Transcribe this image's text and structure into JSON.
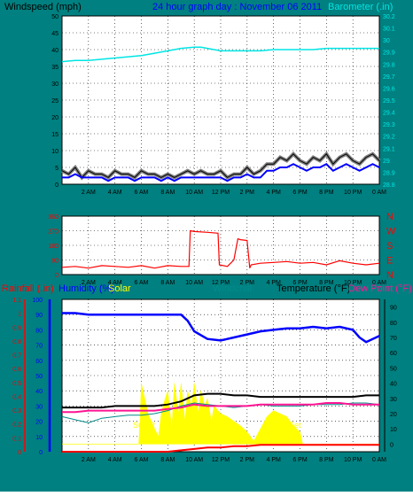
{
  "colors": {
    "background": "#008080",
    "plot_bg": "#ffffff",
    "grid": "#000000",
    "windspeed": "#000000",
    "windspeed_avg": "#0000ff",
    "gust_shadow": "#808080",
    "barometer": "#00e5e5",
    "direction": "#ff0000",
    "humidity": "#0000ff",
    "solar": "#ffff00",
    "windchill": "#008b8b",
    "temperature": "#000000",
    "dew_point": "#ff1493",
    "rainfall": "#ff0000",
    "label_blue": "#0000ff",
    "label_cyan": "#00e5e5",
    "label_red": "#ff0000",
    "label_pink": "#ff1493",
    "label_yellow": "#ffff00",
    "label_teal": "#008b8b"
  },
  "header": {
    "windspeed_label": "Windspeed (mph)",
    "graph_title": "24 hour graph day : November 06 2011",
    "barometer_label": "Barometer (.in)"
  },
  "lower_labels": {
    "rainfall": "Rainfall (.in)",
    "humidity": "Humidity (%)",
    "solar": "Solar",
    "windchill": "Windchill",
    "temperature": "Temperature (°F)",
    "dew_point": "Dew Point (°F)",
    "sun_rise": "Sun R",
    "sun_set": "Set"
  },
  "chart_data": [
    {
      "type": "line",
      "x_ticks": [
        "2 AM",
        "4 AM",
        "6 AM",
        "8 AM",
        "10 AM",
        "12 PM",
        "2 PM",
        "4 PM",
        "6 PM",
        "8 PM",
        "10 PM",
        "0 AM"
      ],
      "x_range": [
        0,
        24
      ],
      "y_left_ticks": [
        "0",
        "5",
        "10",
        "15",
        "20",
        "25",
        "30",
        "35",
        "40",
        "45",
        "50"
      ],
      "y_left_range": [
        0,
        50
      ],
      "y_right_ticks": [
        "28.8",
        "28.9",
        "29",
        "29.1",
        "29.2",
        "29.3",
        "29.4",
        "29.5",
        "29.6",
        "29.7",
        "29.8",
        "29.9",
        "30",
        "30.1",
        "30.2"
      ],
      "y_right_range": [
        28.8,
        30.2
      ],
      "grid": true,
      "series": [
        {
          "name": "Windspeed (mph)",
          "axis": "left",
          "x": [
            0,
            0.5,
            1,
            1.5,
            2,
            2.5,
            3,
            3.5,
            4,
            4.5,
            5,
            5.5,
            6,
            6.5,
            7,
            7.5,
            8,
            8.5,
            9,
            9.5,
            10,
            10.5,
            11,
            11.5,
            12,
            12.5,
            13,
            13.5,
            14,
            14.5,
            15,
            15.5,
            16,
            16.5,
            17,
            17.5,
            18,
            18.5,
            19,
            19.5,
            20,
            20.5,
            21,
            21.5,
            22,
            22.5,
            23,
            23.5,
            24
          ],
          "y": [
            4,
            3,
            5,
            2,
            4,
            3,
            3,
            2,
            4,
            3,
            3,
            2,
            4,
            3,
            3,
            2,
            3,
            2,
            3,
            4,
            3,
            4,
            3,
            3,
            4,
            2,
            3,
            3,
            5,
            3,
            4,
            6,
            6,
            8,
            7,
            9,
            7,
            6,
            8,
            7,
            9,
            6,
            8,
            9,
            7,
            6,
            8,
            9,
            7
          ]
        },
        {
          "name": "Average windspeed",
          "axis": "left",
          "x": [
            0,
            0.5,
            1,
            1.5,
            2,
            2.5,
            3,
            3.5,
            4,
            4.5,
            5,
            5.5,
            6,
            6.5,
            7,
            7.5,
            8,
            8.5,
            9,
            9.5,
            10,
            10.5,
            11,
            11.5,
            12,
            12.5,
            13,
            13.5,
            14,
            14.5,
            15,
            15.5,
            16,
            16.5,
            17,
            17.5,
            18,
            18.5,
            19,
            19.5,
            20,
            20.5,
            21,
            21.5,
            22,
            22.5,
            23,
            23.5,
            24
          ],
          "y": [
            2,
            2,
            3,
            2,
            2,
            2,
            2,
            1,
            2,
            2,
            2,
            1,
            2,
            2,
            2,
            1,
            2,
            1,
            2,
            2,
            2,
            2,
            2,
            2,
            2,
            1,
            2,
            2,
            3,
            2,
            2,
            4,
            4,
            5,
            5,
            6,
            5,
            4,
            5,
            5,
            6,
            4,
            5,
            6,
            5,
            4,
            5,
            6,
            5
          ]
        },
        {
          "name": "Barometer (.in)",
          "axis": "right",
          "x": [
            0,
            1,
            2,
            3,
            4,
            5,
            6,
            7,
            8,
            9,
            10,
            10.5,
            11,
            12,
            13,
            14,
            15,
            16,
            17,
            18,
            19,
            20,
            21,
            22,
            23,
            24
          ],
          "y": [
            29.82,
            29.83,
            29.83,
            29.84,
            29.85,
            29.86,
            29.87,
            29.89,
            29.91,
            29.93,
            29.94,
            29.94,
            29.93,
            29.91,
            29.91,
            29.91,
            29.91,
            29.92,
            29.92,
            29.92,
            29.92,
            29.93,
            29.93,
            29.93,
            29.93,
            29.93
          ]
        }
      ]
    },
    {
      "type": "line",
      "x_ticks": [
        "2 AM",
        "4 AM",
        "6 AM",
        "8 AM",
        "10 AM",
        "12 PM",
        "2 PM",
        "4 PM",
        "6 PM",
        "8 PM",
        "10 PM",
        "0 AM"
      ],
      "x_range": [
        0,
        24
      ],
      "y_left_ticks": [
        "0",
        "90",
        "180",
        "270",
        "360"
      ],
      "y_left_range": [
        0,
        360
      ],
      "y_right_ticks": [
        "N",
        "E",
        "S",
        "W",
        "N"
      ],
      "grid": true,
      "series": [
        {
          "name": "Wind direction",
          "axis": "left",
          "x": [
            0,
            1,
            2,
            3,
            4,
            5,
            6,
            7,
            8,
            9,
            9.6,
            9.7,
            10,
            11,
            11.8,
            11.9,
            12.5,
            13,
            13.3,
            13.5,
            14,
            14.2,
            14.3,
            15,
            16,
            17,
            18,
            19,
            20,
            21,
            22,
            23,
            24
          ],
          "y": [
            45,
            50,
            40,
            55,
            50,
            45,
            55,
            40,
            55,
            50,
            50,
            270,
            265,
            260,
            255,
            60,
            50,
            90,
            220,
            215,
            210,
            40,
            60,
            70,
            75,
            80,
            70,
            75,
            60,
            85,
            70,
            60,
            70
          ]
        }
      ]
    },
    {
      "type": "line",
      "x_ticks": [
        "2 AM",
        "4 AM",
        "6 AM",
        "8 AM",
        "10 AM",
        "12 PM",
        "2 PM",
        "4 PM",
        "6 PM",
        "8 PM",
        "10 PM",
        "0 AM"
      ],
      "x_range": [
        0,
        24
      ],
      "y_rain_ticks": [
        "0",
        "0.1",
        "0.2",
        "0.3",
        "0.4",
        "0.5",
        "0.6",
        "0.7",
        "0.8",
        "0.9",
        "1",
        "1.1"
      ],
      "y_humidity_ticks": [
        "0",
        "10",
        "20",
        "30",
        "40",
        "50",
        "60",
        "70",
        "80",
        "90",
        "100"
      ],
      "y_right_ticks": [
        "0",
        "10",
        "20",
        "30",
        "40",
        "50",
        "60",
        "70",
        "80",
        "90"
      ],
      "y_right_range": [
        -5,
        95
      ],
      "grid": true,
      "series": [
        {
          "name": "Humidity (%)",
          "axis": "humidity",
          "x": [
            0,
            1,
            2,
            3,
            4,
            5,
            6,
            7,
            8,
            9,
            9.5,
            10,
            11,
            12,
            13,
            14,
            15,
            16,
            17,
            18,
            19,
            20,
            21,
            22,
            22.5,
            23,
            24
          ],
          "y": [
            91,
            91,
            90,
            90,
            90,
            90,
            90,
            90,
            90,
            90,
            86,
            79,
            74,
            73,
            75,
            77,
            79,
            80,
            81,
            81,
            82,
            81,
            82,
            80,
            75,
            72,
            76
          ]
        },
        {
          "name": "Solar",
          "axis": "right",
          "x": [
            0,
            5.8,
            5.9,
            6.0,
            6.5,
            7,
            7.3,
            7.5,
            7.8,
            8,
            8.3,
            8.5,
            8.8,
            9,
            9.3,
            9.5,
            9.8,
            10,
            10.3,
            10.5,
            10.8,
            11,
            11.3,
            11.5,
            12,
            12.5,
            13,
            13.5,
            14,
            14.5,
            15,
            15.5,
            16,
            16.5,
            17,
            17.5,
            18,
            18.2,
            24
          ],
          "y": [
            0,
            0,
            15,
            40,
            20,
            10,
            5,
            20,
            30,
            35,
            10,
            40,
            20,
            40,
            15,
            35,
            25,
            40,
            20,
            35,
            25,
            30,
            15,
            25,
            20,
            18,
            15,
            12,
            8,
            2,
            10,
            18,
            22,
            20,
            18,
            12,
            8,
            0,
            0
          ]
        },
        {
          "name": "Windchill",
          "axis": "right",
          "x": [
            0,
            1,
            2,
            3,
            4,
            5,
            6,
            7,
            8,
            9,
            10,
            11,
            12,
            13,
            14,
            15,
            16,
            17,
            18,
            19,
            20,
            21,
            22,
            23,
            24
          ],
          "y": [
            18,
            16,
            14,
            17,
            18,
            19,
            19,
            20,
            22,
            25,
            27,
            26,
            25,
            24,
            25,
            26,
            25,
            25,
            25,
            26,
            26,
            26,
            27,
            27,
            26
          ]
        },
        {
          "name": "Temperature (°F)",
          "axis": "right",
          "x": [
            0,
            1,
            2,
            3,
            4,
            5,
            6,
            7,
            8,
            9,
            10,
            11,
            12,
            13,
            14,
            15,
            16,
            17,
            18,
            19,
            20,
            21,
            22,
            23,
            24
          ],
          "y": [
            24,
            24,
            24,
            24,
            25,
            25,
            25,
            25,
            26,
            28,
            32,
            33,
            33,
            32,
            32,
            31,
            31,
            31,
            31,
            31,
            31,
            31,
            31,
            32,
            32
          ]
        },
        {
          "name": "Dew Point (°F)",
          "axis": "right",
          "x": [
            0,
            1,
            2,
            3,
            4,
            5,
            6,
            7,
            8,
            9,
            10,
            11,
            12,
            13,
            14,
            15,
            16,
            17,
            18,
            19,
            20,
            21,
            22,
            23,
            24
          ],
          "y": [
            21,
            21,
            22,
            22,
            22,
            22,
            22,
            22,
            23,
            24,
            26,
            25,
            25,
            25,
            25,
            26,
            26,
            26,
            26,
            26,
            27,
            27,
            26,
            26,
            26
          ]
        },
        {
          "name": "Rainfall (.in)",
          "axis": "rain",
          "x": [
            0,
            6,
            7,
            8,
            9,
            10,
            11,
            12,
            13,
            14,
            15,
            16,
            17,
            18,
            19,
            20,
            21,
            22,
            23,
            24
          ],
          "y": [
            0,
            0,
            0,
            0,
            0.01,
            0.02,
            0.03,
            0.03,
            0.04,
            0.04,
            0.05,
            0.05,
            0.05,
            0.05,
            0.05,
            0.05,
            0.05,
            0.05,
            0.05,
            0.05
          ]
        }
      ]
    }
  ]
}
